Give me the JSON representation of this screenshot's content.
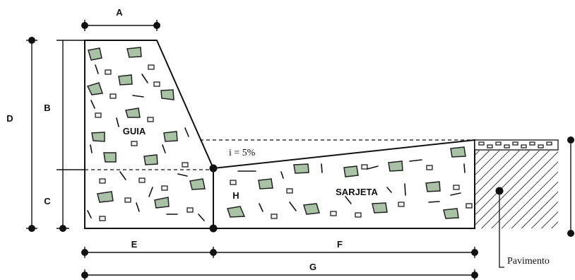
{
  "labels": {
    "A": "A",
    "B": "B",
    "C": "C",
    "D": "D",
    "E": "E",
    "F": "F",
    "G": "G",
    "H": "H",
    "guia": "GUIA",
    "sarjeta": "SARJETA",
    "slope": "i = 5%",
    "pavimento": "Pavimento"
  }
}
